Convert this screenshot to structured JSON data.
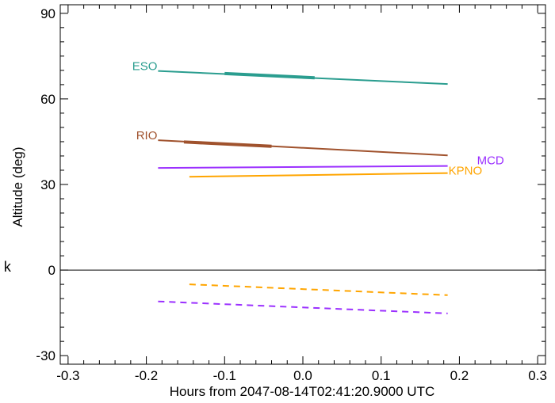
{
  "chart_data": {
    "type": "line",
    "title": "",
    "xlabel": "Hours from 2047-08-14T02:41:20.9000 UTC",
    "ylabel": "Altitude (deg)",
    "xlim": [
      -0.31,
      0.31
    ],
    "ylim": [
      -33,
      93
    ],
    "xticks": [
      -0.3,
      -0.2,
      -0.1,
      0.0,
      0.1,
      0.2,
      0.3
    ],
    "xtick_labels": [
      "-0.3",
      "-0.2",
      "-0.1",
      "0.0",
      "0.1",
      "0.2",
      "0.3"
    ],
    "yticks": [
      -30,
      0,
      30,
      60,
      90
    ],
    "ytick_labels": [
      "-30",
      "0",
      "30",
      "60",
      "90"
    ],
    "zero_line": true,
    "grid": false,
    "legend": "none",
    "series": [
      {
        "name": "ESO",
        "color": "#2a9d8f",
        "style": "solid",
        "x": [
          -0.185,
          0.185
        ],
        "y": [
          69.8,
          65.2
        ],
        "highlight": {
          "x": [
            -0.1,
            0.015
          ],
          "y": [
            68.9,
            67.4
          ]
        }
      },
      {
        "name": "RIO",
        "color": "#a0522d",
        "style": "solid",
        "x": [
          -0.185,
          0.185
        ],
        "y": [
          45.5,
          40.2
        ],
        "highlight": {
          "x": [
            -0.152,
            -0.04
          ],
          "y": [
            44.9,
            43.4
          ]
        }
      },
      {
        "name": "MCD",
        "color": "#9b30ff",
        "style": "solid",
        "x": [
          -0.185,
          0.185
        ],
        "y": [
          35.8,
          36.5
        ]
      },
      {
        "name": "KPNO",
        "color": "#ffa500",
        "style": "solid",
        "x": [
          -0.145,
          0.185
        ],
        "y": [
          32.7,
          34.0
        ]
      },
      {
        "name": "",
        "color": "#ffa500",
        "style": "dashed",
        "x": [
          -0.145,
          0.185
        ],
        "y": [
          -5.0,
          -8.8
        ]
      },
      {
        "name": "",
        "color": "#9b30ff",
        "style": "dashed",
        "x": [
          -0.185,
          0.185
        ],
        "y": [
          -11.0,
          -15.2
        ]
      }
    ]
  },
  "stray_text": "k"
}
